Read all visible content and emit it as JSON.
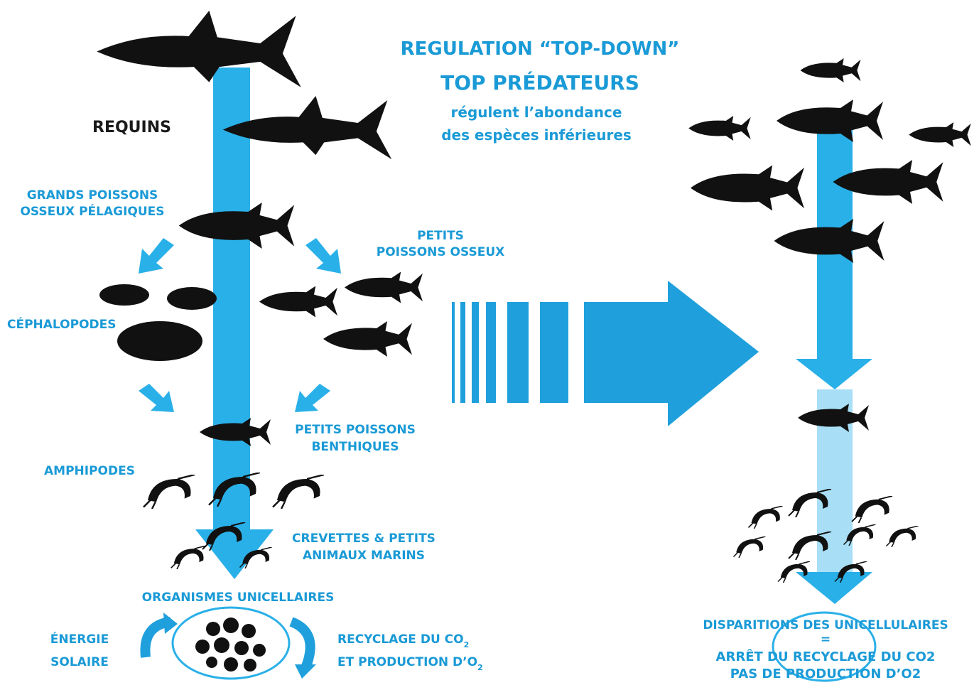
{
  "header": {
    "title": "REGULATION “TOP-DOWN”",
    "subtitle": "TOP PRÉDATEURS",
    "description": [
      "régulent l’abondance",
      "des espèces inférieures"
    ]
  },
  "left": {
    "sharks": "REQUINS",
    "pelagic": [
      "GRANDS POISSONS",
      "OSSEUX PÉLAGIQUES"
    ],
    "small_bony": [
      "PETITS",
      "POISSONS OSSEUX"
    ],
    "cephalopods": "CÉPHALOPODES",
    "benthic": [
      "PETITS POISSONS",
      "BENTHIQUES"
    ],
    "amphipods": "AMPHIPODES",
    "shrimps": [
      "CREVETTES & PETITS",
      "ANIMAUX MARINS"
    ],
    "unicellular": "ORGANISMES UNICELLAIRES",
    "solar": [
      "ÉNERGIE",
      "SOLAIRE"
    ],
    "recycling": [
      {
        "text": "RECYCLAGE DU CO",
        "sub": "2"
      },
      {
        "text": "ET PRODUCTION D’O",
        "sub": "2"
      }
    ]
  },
  "right": {
    "lines": [
      "DISPARITIONS DES UNICELLULAIRES",
      "=",
      "ARRÊT DU RECYCLAGE DU CO2",
      "PAS DE PRODUCTION D’O2"
    ]
  }
}
